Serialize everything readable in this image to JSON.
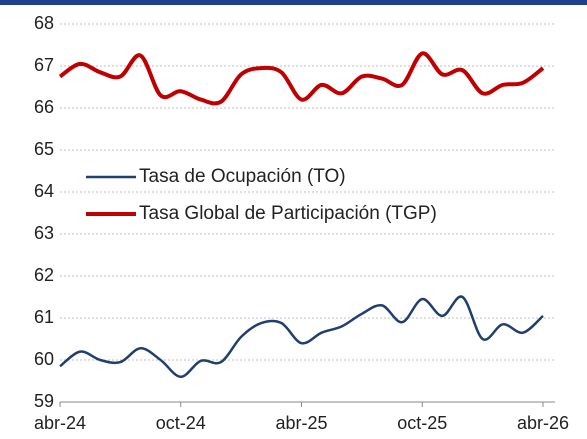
{
  "chart_data": {
    "type": "line",
    "categories": [
      "abr-24",
      null,
      null,
      null,
      null,
      null,
      "oct-24",
      null,
      null,
      null,
      null,
      null,
      "abr-25",
      null,
      null,
      null,
      null,
      null,
      "oct-25",
      null,
      null,
      null,
      null,
      null,
      "abr-26"
    ],
    "series": [
      {
        "name": "Tasa de Ocupación (TO)",
        "color": "#1f3f6e",
        "values": [
          59.85,
          60.2,
          60.0,
          59.95,
          60.28,
          60.0,
          59.6,
          59.98,
          59.95,
          60.55,
          60.88,
          60.88,
          60.4,
          60.65,
          60.8,
          61.1,
          61.3,
          60.9,
          61.45,
          61.05,
          61.5,
          60.5,
          60.85,
          60.65,
          61.05
        ]
      },
      {
        "name": "Tasa Global de Participación (TGP)",
        "color": "#c00000",
        "values": [
          66.75,
          67.05,
          66.85,
          66.75,
          67.25,
          66.3,
          66.4,
          66.2,
          66.15,
          66.8,
          66.95,
          66.85,
          66.2,
          66.55,
          66.35,
          66.75,
          66.7,
          66.55,
          67.3,
          66.8,
          66.9,
          66.35,
          66.55,
          66.6,
          66.95
        ]
      }
    ],
    "ylim": [
      59,
      68
    ],
    "yticks": [
      59,
      60,
      61,
      62,
      63,
      64,
      65,
      66,
      67,
      68
    ],
    "grid": true,
    "legend": "left"
  }
}
